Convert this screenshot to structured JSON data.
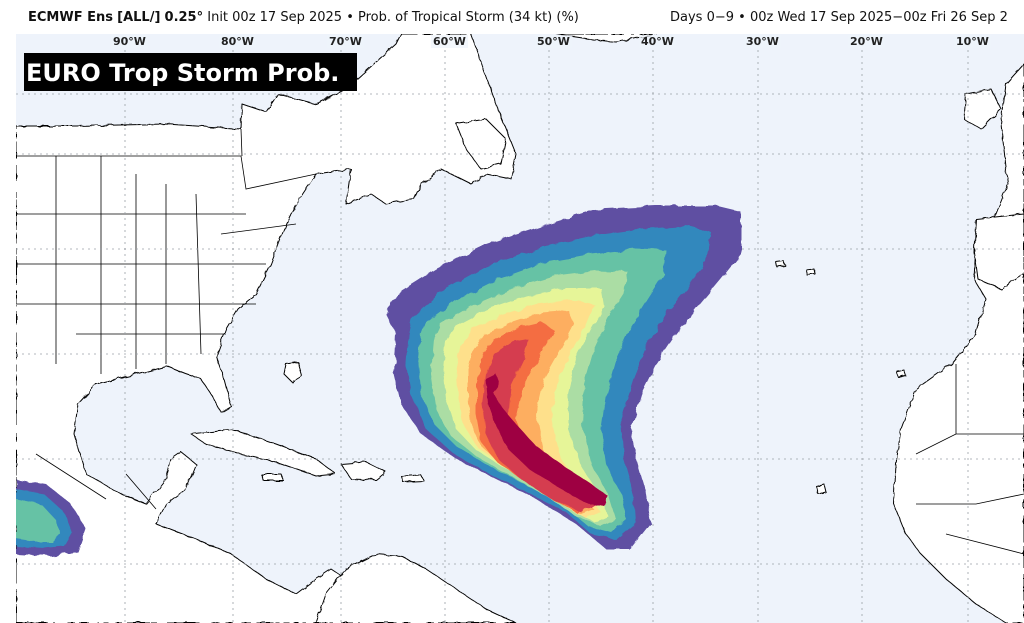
{
  "header": {
    "model": "ECMWF Ens",
    "member_set": "[ALL/]",
    "resolution": "0.25°",
    "init": "Init 00z 17 Sep 2025",
    "bullet": "•",
    "product": "Prob. of Tropical Storm (34 kt) (%)",
    "valid": "Days 0−9 • 00z Wed 17 Sep 2025−00z Fri 26 Sep 2"
  },
  "banner": {
    "text": "EURO Trop Storm Prob."
  },
  "map": {
    "longitude_labels": [
      "90°W",
      "80°W",
      "70°W",
      "60°W",
      "50°W",
      "40°W",
      "30°W",
      "20°W",
      "10°W"
    ],
    "colors": {
      "ocean": "#eef3fb",
      "land": "#ffffff",
      "coast": "#000000",
      "grid": "#9aa0a6",
      "prob_scale": [
        "#5e4fa2",
        "#3288bd",
        "#66c2a5",
        "#abdda4",
        "#e6f598",
        "#fee08b",
        "#fdae61",
        "#f46d43",
        "#d53e4f",
        "#9e0142"
      ]
    }
  }
}
